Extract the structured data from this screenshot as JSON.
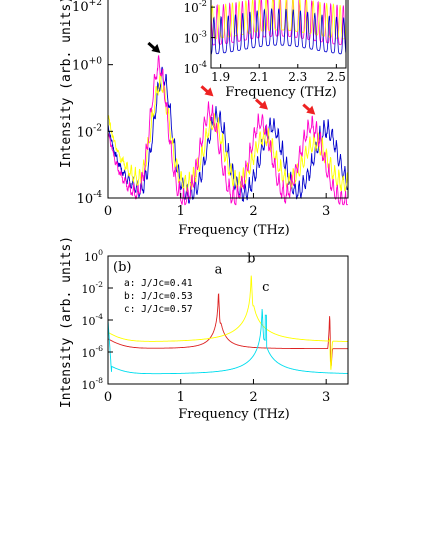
{
  "chart_data": [
    {
      "id": "top",
      "type": "line",
      "xlabel": "Frequency (THz)",
      "ylabel": "Intensity (arb. units)",
      "xlim": [
        0,
        3.3
      ],
      "ylim_log10": [
        -4,
        2
      ],
      "xticks": [
        0,
        1,
        2,
        3
      ],
      "xtick_labels": [
        "0",
        "1",
        "2",
        "3"
      ],
      "yticks_log10": [
        -4,
        -2,
        0,
        2
      ],
      "ytick_labels": [
        {
          "base": "10",
          "exp": "-4"
        },
        {
          "base": "10",
          "exp": "-2"
        },
        {
          "base": "10",
          "exp": "+0"
        },
        {
          "base": "10",
          "exp": "+2"
        }
      ],
      "series": [
        {
          "color": "#0000cc",
          "peaks_thz": [
            0.75,
            1.5,
            2.25,
            3.0
          ],
          "peak_log10": [
            0.0,
            -1.2,
            -1.5,
            -1.6
          ],
          "valley_log10": -3.6
        },
        {
          "color": "#ffff00",
          "peaks_thz": [
            0.72,
            1.45,
            2.15,
            2.85
          ],
          "peak_log10": [
            -0.2,
            -1.4,
            -1.8,
            -2.0
          ],
          "valley_log10": -3.3
        },
        {
          "color": "#ff00cc",
          "peaks_thz": [
            0.7,
            1.4,
            2.1,
            2.8
          ],
          "peak_log10": [
            0.3,
            -1.1,
            -1.4,
            -1.5
          ],
          "valley_log10": -3.8
        }
      ],
      "arrows": [
        {
          "color": "#000000",
          "x": 0.72,
          "y_log10": 0.35
        },
        {
          "color": "#ee2222",
          "x": 1.45,
          "y_log10": -0.95
        },
        {
          "color": "#ee2222",
          "x": 2.2,
          "y_log10": -1.35
        },
        {
          "color": "#ee2222",
          "x": 2.85,
          "y_log10": -1.5
        }
      ],
      "inset": {
        "xlabel": "Frequency (THz)",
        "xlim": [
          1.85,
          2.55
        ],
        "ylim_log10": [
          -4,
          -1.7
        ],
        "xticks": [
          1.9,
          2.1,
          2.3,
          2.5
        ],
        "xtick_labels": [
          "1.9",
          "2.1",
          "2.3",
          "2.5"
        ],
        "yticks_log10": [
          -4,
          -3,
          -2
        ],
        "ytick_labels": [
          {
            "base": "10",
            "exp": "-4"
          },
          {
            "base": "10",
            "exp": "-3"
          },
          {
            "base": "10",
            "exp": "-2"
          }
        ]
      }
    },
    {
      "id": "bottom",
      "type": "line",
      "panel_label": "(b)",
      "xlabel": "Frequency (THz)",
      "ylabel": "Intensity (arb. units)",
      "xlim": [
        0,
        3.3
      ],
      "ylim_log10": [
        -8,
        0
      ],
      "xticks": [
        0,
        1,
        2,
        3
      ],
      "xtick_labels": [
        "0",
        "1",
        "2",
        "3"
      ],
      "yticks_log10": [
        -8,
        -6,
        -4,
        -2,
        0
      ],
      "ytick_labels": [
        {
          "base": "10",
          "exp": "-8"
        },
        {
          "base": "10",
          "exp": "-6"
        },
        {
          "base": "10",
          "exp": "-4"
        },
        {
          "base": "10",
          "exp": "-2"
        },
        {
          "base": "10",
          "exp": "0"
        }
      ],
      "legend": [
        "a: J/Jc=0.41",
        "b: J/Jc=0.53",
        "c: J/Jc=0.57"
      ],
      "peak_labels": [
        {
          "text": "a",
          "x": 1.52,
          "y_log10": -1.1
        },
        {
          "text": "b",
          "x": 1.97,
          "y_log10": -0.4
        },
        {
          "text": "c",
          "x": 2.17,
          "y_log10": -2.2
        }
      ],
      "series": [
        {
          "label": "a",
          "color": "#dd2222",
          "peak_thz": 1.52,
          "peak_log10": -2.3,
          "baseline_log10": -5.8,
          "harmonic_thz": 3.05,
          "harmonic_log10": -3.6
        },
        {
          "label": "b",
          "color": "#ffff00",
          "peak_thz": 1.97,
          "peak_log10": -1.2,
          "baseline_log10": -5.4,
          "harmonic_thz": 3.05,
          "harmonic_log10": -5.0
        },
        {
          "label": "c",
          "color": "#00ddee",
          "peak_thz": 2.12,
          "peak_log10": -3.3,
          "baseline_log10": -7.4
        }
      ]
    }
  ]
}
